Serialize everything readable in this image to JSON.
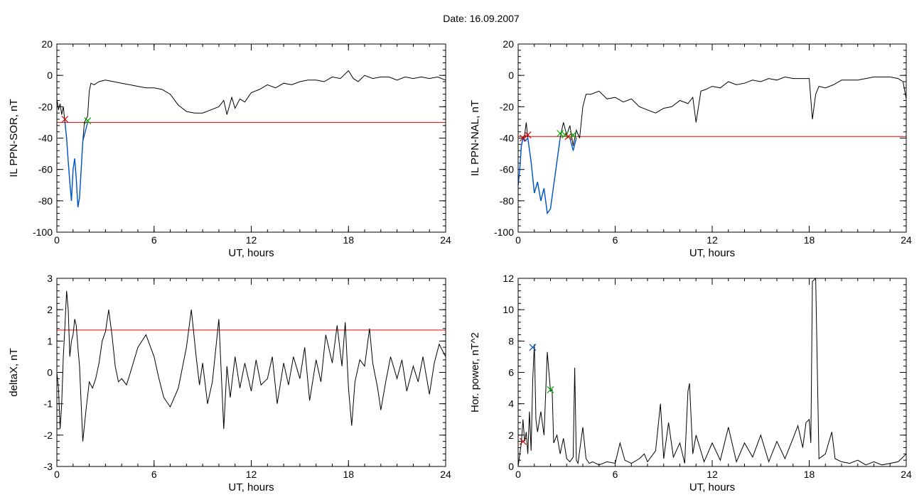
{
  "title": "Date:  16.09.2007",
  "chart_data": [
    {
      "type": "line",
      "xlabel": "UT, hours",
      "ylabel": "IL PPN-SOR, nT",
      "xlim": [
        0,
        24
      ],
      "ylim": [
        -100,
        20
      ],
      "xticks": [
        0,
        6,
        12,
        18,
        24
      ],
      "yticks": [
        -100,
        -80,
        -60,
        -40,
        -20,
        0,
        20
      ],
      "threshold": -30,
      "series": [
        {
          "color": "#000000",
          "x": [
            0,
            0.1,
            0.2,
            0.3,
            0.4,
            0.5,
            0.6,
            0.7,
            0.8,
            0.9,
            1.0,
            1.1,
            1.2,
            1.3,
            1.4,
            1.5,
            1.6,
            1.7,
            1.8,
            1.9,
            2.0,
            2.1,
            2.3,
            2.6,
            3.0,
            3.5,
            4.0,
            4.5,
            5.0,
            5.5,
            6.0,
            6.5,
            7.0,
            7.5,
            8.0,
            8.5,
            9.0,
            9.5,
            10.0,
            10.3,
            10.5,
            10.8,
            11.0,
            11.3,
            11.6,
            12.0,
            12.5,
            13.0,
            13.5,
            14.0,
            14.5,
            15.0,
            15.5,
            16.0,
            16.5,
            17.0,
            17.5,
            18.0,
            18.3,
            18.6,
            19.0,
            19.5,
            20.0,
            20.5,
            21.0,
            21.5,
            22.0,
            22.5,
            23.0,
            23.5,
            24.0
          ],
          "y": [
            -15,
            -22,
            -18,
            -25,
            -20,
            -30,
            -40,
            -55,
            -68,
            -80,
            -60,
            -53,
            -66,
            -84,
            -78,
            -60,
            -42,
            -30,
            -28,
            -26,
            -10,
            -5,
            -6,
            -4,
            -3,
            -4,
            -5,
            -6,
            -7,
            -8,
            -8,
            -9,
            -12,
            -19,
            -23,
            -24,
            -24,
            -22,
            -20,
            -16,
            -25,
            -14,
            -21,
            -15,
            -17,
            -11,
            -9,
            -6,
            -8,
            -5,
            -6,
            -4,
            -3,
            -3,
            -4,
            -1,
            -2,
            3,
            -2,
            -4,
            0,
            -2,
            -1,
            -1,
            -3,
            -1,
            -2,
            -1,
            -2,
            -1,
            -3
          ]
        },
        {
          "color": "#0055cc",
          "x": [
            0.5,
            0.6,
            0.7,
            0.8,
            0.9,
            1.0,
            1.1,
            1.2,
            1.3,
            1.4,
            1.5,
            1.6,
            1.7,
            1.8,
            1.9
          ],
          "y": [
            -30,
            -40,
            -55,
            -68,
            -80,
            -60,
            -53,
            -66,
            -84,
            -78,
            -60,
            -42,
            -38,
            -34,
            -30
          ]
        }
      ],
      "markers": [
        {
          "x": 0.5,
          "y": -28,
          "color": "#cc0000"
        },
        {
          "x": 1.9,
          "y": -29,
          "color": "#00aa00"
        }
      ]
    },
    {
      "type": "line",
      "xlabel": "UT, hours",
      "ylabel": "IL PPN-NAL, nT",
      "xlim": [
        0,
        24
      ],
      "ylim": [
        -100,
        20
      ],
      "xticks": [
        0,
        6,
        12,
        18,
        24
      ],
      "yticks": [
        -100,
        -80,
        -60,
        -40,
        -20,
        0,
        20
      ],
      "threshold": -39,
      "series": [
        {
          "color": "#000000",
          "x": [
            0,
            0.1,
            0.2,
            0.3,
            0.4,
            0.5,
            0.6,
            0.8,
            1.0,
            1.2,
            1.4,
            1.6,
            1.8,
            2.0,
            2.2,
            2.4,
            2.6,
            2.8,
            3.0,
            3.2,
            3.4,
            3.6,
            3.8,
            4.0,
            4.2,
            4.5,
            5.0,
            5.5,
            6.0,
            6.5,
            7.0,
            7.5,
            8.0,
            8.5,
            9.0,
            9.5,
            10.0,
            10.5,
            10.8,
            11.0,
            11.3,
            11.6,
            12.0,
            12.5,
            13.0,
            13.5,
            14.0,
            14.5,
            15.0,
            15.5,
            16.0,
            16.5,
            17.0,
            17.5,
            18.0,
            18.2,
            18.4,
            18.6,
            19.0,
            19.5,
            20.0,
            20.5,
            21.0,
            21.5,
            22.0,
            22.5,
            23.0,
            23.5,
            23.8,
            24.0
          ],
          "y": [
            -70,
            -60,
            -45,
            -40,
            -38,
            -30,
            -40,
            -55,
            -75,
            -68,
            -80,
            -72,
            -88,
            -85,
            -70,
            -55,
            -40,
            -30,
            -38,
            -32,
            -45,
            -35,
            -40,
            -20,
            -12,
            -12,
            -10,
            -15,
            -14,
            -17,
            -15,
            -20,
            -22,
            -24,
            -21,
            -20,
            -16,
            -18,
            -14,
            -30,
            -10,
            -9,
            -7,
            -8,
            -4,
            -6,
            -5,
            -3,
            -4,
            -2,
            -3,
            -1,
            -2,
            -2,
            -2,
            -28,
            -12,
            -7,
            -8,
            -6,
            -3,
            -3,
            -3,
            -2,
            -1,
            -1,
            -1,
            -2,
            -4,
            -15
          ]
        },
        {
          "color": "#0055cc",
          "x": [
            0,
            0.1,
            0.2,
            0.3,
            0.4,
            0.6,
            0.8,
            1.0,
            1.2,
            1.4,
            1.6,
            1.8,
            2.0,
            2.2,
            2.4,
            2.6
          ],
          "y": [
            -70,
            -60,
            -45,
            -40,
            -42,
            -40,
            -55,
            -75,
            -68,
            -80,
            -72,
            -88,
            -85,
            -70,
            -55,
            -40
          ]
        },
        {
          "color": "#0055cc",
          "x": [
            3.2,
            3.4,
            3.6
          ],
          "y": [
            -40,
            -48,
            -40
          ]
        }
      ],
      "markers": [
        {
          "x": 0.3,
          "y": -40,
          "color": "#cc0000"
        },
        {
          "x": 0.6,
          "y": -38,
          "color": "#cc0000"
        },
        {
          "x": 2.6,
          "y": -37,
          "color": "#00aa00"
        },
        {
          "x": 2.9,
          "y": -38,
          "color": "#00aa00"
        },
        {
          "x": 3.1,
          "y": -39,
          "color": "#cc0000"
        },
        {
          "x": 3.4,
          "y": -38,
          "color": "#00aa00"
        }
      ]
    },
    {
      "type": "line",
      "xlabel": "UT, hours",
      "ylabel": "deltaX, nT",
      "xlim": [
        0,
        24
      ],
      "ylim": [
        -3,
        3
      ],
      "xticks": [
        0,
        6,
        12,
        18,
        24
      ],
      "yticks": [
        -3,
        -2,
        -1,
        0,
        1,
        2,
        3
      ],
      "threshold": 1.35,
      "series": [
        {
          "color": "#000000",
          "x": [
            0,
            0.1,
            0.2,
            0.3,
            0.4,
            0.5,
            0.6,
            0.7,
            0.8,
            0.9,
            1.0,
            1.1,
            1.2,
            1.3,
            1.4,
            1.5,
            1.6,
            1.8,
            2.0,
            2.2,
            2.4,
            2.6,
            2.8,
            3.0,
            3.2,
            3.4,
            3.6,
            3.8,
            4.0,
            4.3,
            4.6,
            5.0,
            5.5,
            6.0,
            6.3,
            6.6,
            7.0,
            7.5,
            8.0,
            8.3,
            8.6,
            8.8,
            9.0,
            9.3,
            9.6,
            10.0,
            10.3,
            10.5,
            10.7,
            11.0,
            11.3,
            11.6,
            12.0,
            12.3,
            12.6,
            13.0,
            13.3,
            13.6,
            14.0,
            14.3,
            14.6,
            15.0,
            15.3,
            15.6,
            16.0,
            16.3,
            16.6,
            17.0,
            17.3,
            17.6,
            17.8,
            18.0,
            18.2,
            18.4,
            18.7,
            19.0,
            19.3,
            19.5,
            19.8,
            20.0,
            20.3,
            20.6,
            21.0,
            21.3,
            21.6,
            22.0,
            22.3,
            22.6,
            23.0,
            23.3,
            23.6,
            24.0
          ],
          "y": [
            0,
            -0.5,
            -1.8,
            -1.0,
            0.5,
            1.5,
            2.6,
            2.0,
            0.5,
            1.0,
            1.2,
            1.7,
            1.5,
            0.8,
            0.2,
            -1.0,
            -2.2,
            -1.2,
            -0.3,
            -0.5,
            -0.2,
            0.3,
            1.0,
            1.3,
            2.0,
            1.2,
            0.2,
            -0.3,
            -0.2,
            -0.4,
            0.1,
            0.8,
            1.2,
            0.5,
            -0.2,
            -0.8,
            -1.1,
            -0.5,
            0.8,
            2.0,
            0.5,
            -0.4,
            0.3,
            -1.0,
            -0.3,
            1.7,
            -1.8,
            0.2,
            -0.8,
            0.5,
            -0.5,
            0.3,
            -0.6,
            0.4,
            -0.4,
            -0.2,
            0.5,
            -1.0,
            0.3,
            -0.4,
            0.5,
            -0.2,
            0.8,
            -0.9,
            0.4,
            -0.3,
            1.2,
            0.3,
            1.5,
            0.2,
            1.6,
            -0.5,
            -1.7,
            -0.3,
            0.4,
            0.2,
            1.4,
            0.3,
            -0.5,
            -1.2,
            -0.3,
            0.5,
            -0.2,
            0.4,
            -0.6,
            0.2,
            -0.3,
            0.5,
            -0.7,
            0.3,
            0.9,
            0.5
          ]
        }
      ],
      "markers": []
    },
    {
      "type": "line",
      "xlabel": "UT, hours",
      "ylabel": "Hor. power, nT^2",
      "xlim": [
        0,
        24
      ],
      "ylim": [
        0,
        12
      ],
      "xticks": [
        0,
        6,
        12,
        18,
        24
      ],
      "yticks": [
        0,
        2,
        4,
        6,
        8,
        10,
        12
      ],
      "threshold": null,
      "series": [
        {
          "color": "#000000",
          "x": [
            0,
            0.2,
            0.3,
            0.4,
            0.5,
            0.6,
            0.7,
            0.8,
            0.9,
            1.0,
            1.1,
            1.2,
            1.4,
            1.6,
            1.8,
            2.0,
            2.1,
            2.2,
            2.4,
            2.6,
            2.8,
            3.0,
            3.2,
            3.4,
            3.5,
            3.6,
            3.7,
            3.8,
            4.0,
            4.2,
            4.4,
            4.6,
            5.0,
            5.5,
            6.0,
            6.3,
            6.6,
            7.0,
            7.5,
            7.8,
            8.0,
            8.5,
            8.8,
            9.0,
            9.3,
            9.6,
            10.0,
            10.3,
            10.5,
            10.6,
            10.8,
            11.0,
            11.5,
            12.0,
            12.5,
            13.0,
            13.5,
            14.0,
            14.5,
            15.0,
            15.5,
            16.0,
            16.5,
            17.0,
            17.3,
            17.6,
            17.8,
            18.0,
            18.1,
            18.2,
            18.4,
            18.6,
            19.0,
            19.4,
            19.6,
            20.0,
            20.5,
            21.0,
            21.5,
            22.0,
            22.5,
            23.0,
            23.5,
            24.0
          ],
          "y": [
            0,
            1.5,
            3.0,
            1.6,
            2.2,
            0.8,
            3.5,
            1.0,
            5.5,
            7.8,
            3.0,
            2.2,
            3.5,
            2.0,
            7.3,
            4.8,
            4.9,
            1.5,
            2.0,
            0.8,
            1.8,
            0.5,
            0.3,
            0.6,
            6.3,
            0.4,
            0.2,
            1.0,
            2.5,
            0.5,
            0.2,
            0.3,
            0.1,
            0.3,
            0.2,
            1.5,
            0.4,
            0.2,
            0.5,
            0.8,
            0.3,
            1.0,
            4.0,
            0.5,
            2.8,
            0.6,
            1.5,
            0.2,
            4.8,
            5.3,
            0.8,
            2.0,
            0.3,
            1.5,
            0.4,
            2.5,
            0.3,
            1.5,
            0.6,
            2.0,
            0.3,
            1.6,
            0.5,
            1.8,
            2.6,
            1.2,
            2.8,
            3.0,
            1.5,
            11.8,
            12.0,
            0.5,
            0.8,
            2.2,
            0.5,
            0.3,
            0.2,
            0.4,
            0.1,
            0.3,
            0.1,
            0.2,
            0.3,
            0.8
          ]
        }
      ],
      "markers": [
        {
          "x": 0.3,
          "y": 1.6,
          "color": "#cc0000"
        },
        {
          "x": 0.9,
          "y": 7.6,
          "color": "#0055cc"
        },
        {
          "x": 2.0,
          "y": 4.9,
          "color": "#00aa00"
        }
      ]
    }
  ]
}
